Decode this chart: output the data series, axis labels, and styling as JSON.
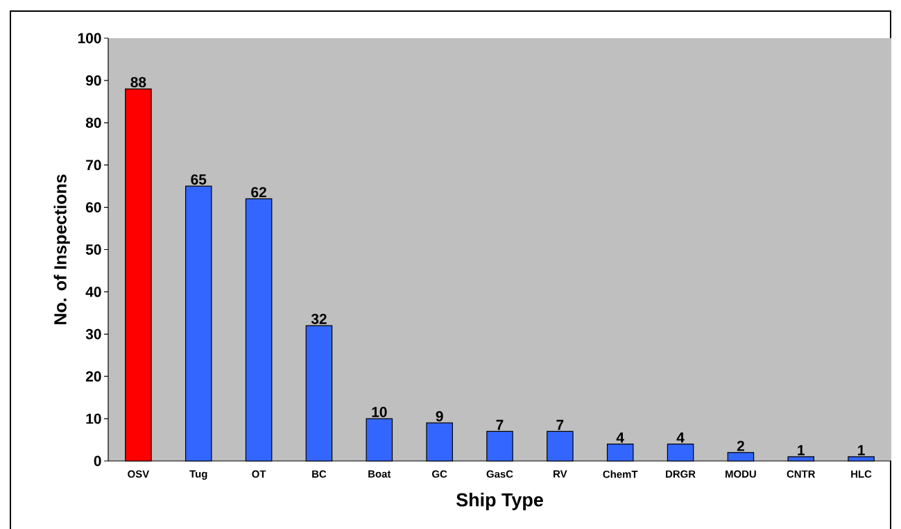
{
  "chart_data": {
    "type": "bar",
    "xlabel": "Ship Type",
    "ylabel": "No. of Inspections",
    "categories": [
      "OSV",
      "Tug",
      "OT",
      "BC",
      "Boat",
      "GC",
      "GasC",
      "RV",
      "ChemT",
      "DRGR",
      "MODU",
      "CNTR",
      "HLC"
    ],
    "values": [
      88,
      65,
      62,
      32,
      10,
      9,
      7,
      7,
      4,
      4,
      2,
      1,
      1
    ],
    "colors": [
      "#ff0000",
      "#3366ff",
      "#3366ff",
      "#3366ff",
      "#3366ff",
      "#3366ff",
      "#3366ff",
      "#3366ff",
      "#3366ff",
      "#3366ff",
      "#3366ff",
      "#3366ff",
      "#3366ff"
    ],
    "ylim": [
      0,
      100
    ],
    "yticks": [
      0,
      10,
      20,
      30,
      40,
      50,
      60,
      70,
      80,
      90,
      100
    ],
    "data_labels": true
  }
}
